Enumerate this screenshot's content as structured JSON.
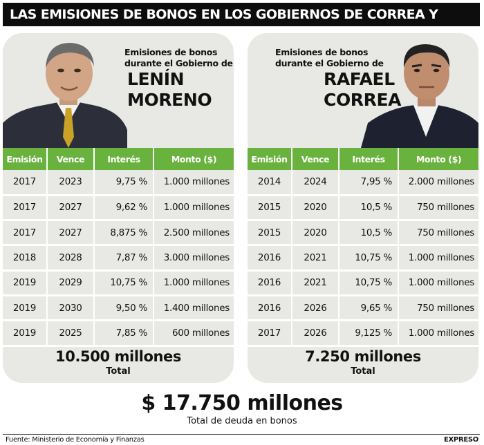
{
  "header": {
    "title": "LAS EMISIONES DE BONOS EN LOS GOBIERNOS DE CORREA Y MORENO"
  },
  "columns": [
    "Emisión",
    "Vence",
    "Interés",
    "Monto ($)"
  ],
  "panels": [
    {
      "caption_line1": "Emisiones de bonos",
      "caption_line2": "durante el Gobierno de",
      "name_line1": "LENÍN",
      "name_line2": "MORENO",
      "total_value": "10.500 millones",
      "total_label": "Total"
    },
    {
      "caption_line1": "Emisiones de bonos",
      "caption_line2": "durante el Gobierno de",
      "name_line1": "RAFAEL",
      "name_line2": "CORREA",
      "total_value": "7.250 millones",
      "total_label": "Total"
    }
  ],
  "grand_total": {
    "value": "$ 17.750 millones",
    "label": "Total de deuda en bonos"
  },
  "footer": {
    "source": "Fuente: Ministerio de Economía y Finanzas",
    "brand": "EXPRESO"
  },
  "colors": {
    "header_bg": "#0d0d0d",
    "table_header": "#6ab23e",
    "panel_bg": "#e8e8e4"
  },
  "chart_data": [
    {
      "type": "table",
      "title": "Emisiones de bonos durante el Gobierno de LENÍN MORENO",
      "columns": [
        "Emisión",
        "Vence",
        "Interés",
        "Monto ($)"
      ],
      "rows": [
        [
          "2017",
          "2023",
          "9,75 %",
          "1.000 millones"
        ],
        [
          "2017",
          "2027",
          "9,62 %",
          "1.000 millones"
        ],
        [
          "2017",
          "2027",
          "8,875 %",
          "2.500 millones"
        ],
        [
          "2018",
          "2028",
          "7,87 %",
          "3.000 millones"
        ],
        [
          "2019",
          "2029",
          "10,75 %",
          "1.000 millones"
        ],
        [
          "2019",
          "2030",
          "9,50 %",
          "1.400 millones"
        ],
        [
          "2019",
          "2025",
          "7,85 %",
          "600 millones"
        ]
      ]
    },
    {
      "type": "table",
      "title": "Emisiones de bonos durante el Gobierno de RAFAEL CORREA",
      "columns": [
        "Emisión",
        "Vence",
        "Interés",
        "Monto ($)"
      ],
      "rows": [
        [
          "2014",
          "2024",
          "7,95 %",
          "2.000 millones"
        ],
        [
          "2015",
          "2020",
          "10,5 %",
          "750 millones"
        ],
        [
          "2015",
          "2020",
          "10,5 %",
          "750 millones"
        ],
        [
          "2016",
          "2021",
          "10,75 %",
          "1.000 millones"
        ],
        [
          "2016",
          "2021",
          "10,75 %",
          "1.000 millones"
        ],
        [
          "2016",
          "2026",
          "9,65 %",
          "750 millones"
        ],
        [
          "2017",
          "2026",
          "9,125 %",
          "1.000 millones"
        ]
      ]
    }
  ]
}
